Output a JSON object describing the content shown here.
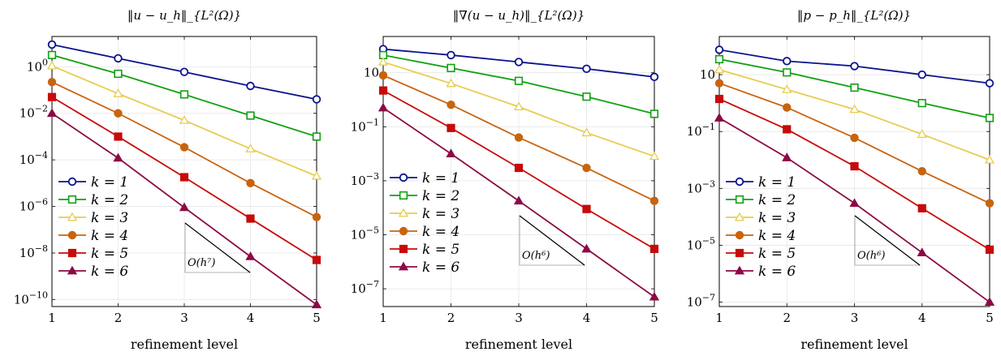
{
  "chart_data": [
    {
      "type": "line",
      "title": "‖u − u_h‖_{L²(Ω)}",
      "xlabel": "refinement level",
      "ylabel": "",
      "log_y": true,
      "x": [
        1,
        2,
        3,
        4,
        5
      ],
      "xlim": [
        1,
        5
      ],
      "ylim": [
        5e-11,
        20
      ],
      "y_ticks": [
        {
          "v": 1,
          "e": "0"
        },
        {
          "v": 0.01,
          "e": "-2"
        },
        {
          "v": 0.0001,
          "e": "-4"
        },
        {
          "v": 1e-06,
          "e": "-6"
        },
        {
          "v": 1e-08,
          "e": "-8"
        },
        {
          "v": 1e-10,
          "e": "-10"
        }
      ],
      "grid": true,
      "legend_position": "bottom-left",
      "slope_label": "O(h⁷)",
      "series": [
        {
          "name": "k = 1",
          "values": [
            9,
            2.3,
            0.6,
            0.15,
            0.04
          ]
        },
        {
          "name": "k = 2",
          "values": [
            3.2,
            0.5,
            0.065,
            0.008,
            0.001
          ]
        },
        {
          "name": "k = 3",
          "values": [
            1.1,
            0.07,
            0.005,
            0.0003,
            2e-05
          ]
        },
        {
          "name": "k = 4",
          "values": [
            0.22,
            0.01,
            0.00035,
            1e-05,
            3.5e-07
          ]
        },
        {
          "name": "k = 5",
          "values": [
            0.05,
            0.001,
            1.8e-05,
            3e-07,
            5e-09
          ]
        },
        {
          "name": "k = 6",
          "values": [
            0.01,
            0.00012,
            9e-07,
            7e-09,
            6e-11
          ]
        }
      ]
    },
    {
      "type": "line",
      "title": "‖∇(u − u_h)‖_{L²(Ω)}",
      "xlabel": "refinement level",
      "ylabel": "",
      "log_y": true,
      "x": [
        1,
        2,
        3,
        4,
        5
      ],
      "xlim": [
        1,
        5
      ],
      "ylim": [
        2.2e-08,
        220
      ],
      "y_ticks": [
        {
          "v": 10,
          "e": ""
        },
        {
          "v": 0.1,
          "e": "-1"
        },
        {
          "v": 0.001,
          "e": "-3"
        },
        {
          "v": 1e-05,
          "e": "-5"
        },
        {
          "v": 1e-07,
          "e": "-7"
        }
      ],
      "grid": true,
      "legend_position": "bottom-left",
      "slope_label": "O(h⁶)",
      "series": [
        {
          "name": "k = 1",
          "values": [
            75,
            45,
            25,
            14,
            7
          ]
        },
        {
          "name": "k = 2",
          "values": [
            45,
            15,
            5,
            1.3,
            0.3
          ]
        },
        {
          "name": "k = 3",
          "values": [
            25,
            4,
            0.55,
            0.06,
            0.008
          ]
        },
        {
          "name": "k = 4",
          "values": [
            8,
            0.65,
            0.04,
            0.003,
            0.00018
          ]
        },
        {
          "name": "k = 5",
          "values": [
            2.2,
            0.09,
            0.003,
            9e-05,
            3e-06
          ]
        },
        {
          "name": "k = 6",
          "values": [
            0.5,
            0.01,
            0.00018,
            3e-06,
            5e-08
          ]
        }
      ]
    },
    {
      "type": "line",
      "title": "‖p − p_h‖_{L²(Ω)}",
      "xlabel": "refinement level",
      "ylabel": "",
      "log_y": true,
      "x": [
        1,
        2,
        3,
        4,
        5
      ],
      "xlim": [
        1,
        5
      ],
      "ylim": [
        7e-08,
        220
      ],
      "y_ticks": [
        {
          "v": 10,
          "e": ""
        },
        {
          "v": 0.1,
          "e": "-1"
        },
        {
          "v": 0.001,
          "e": "-3"
        },
        {
          "v": 1e-05,
          "e": "-5"
        },
        {
          "v": 1e-07,
          "e": "-7"
        }
      ],
      "grid": true,
      "legend_position": "bottom-left",
      "slope_label": "O(h⁶)",
      "series": [
        {
          "name": "k = 1",
          "values": [
            75,
            30,
            20,
            10,
            5
          ]
        },
        {
          "name": "k = 2",
          "values": [
            35,
            12,
            3.5,
            1,
            0.3
          ]
        },
        {
          "name": "k = 3",
          "values": [
            15,
            3,
            0.6,
            0.08,
            0.01
          ]
        },
        {
          "name": "k = 4",
          "values": [
            5,
            0.7,
            0.06,
            0.004,
            0.0003
          ]
        },
        {
          "name": "k = 5",
          "values": [
            1.4,
            0.12,
            0.006,
            0.0002,
            7e-06
          ]
        },
        {
          "name": "k = 6",
          "values": [
            0.3,
            0.012,
            0.0003,
            5.5e-06,
            1e-07
          ]
        }
      ]
    }
  ],
  "series_colors": [
    "#0a148c",
    "#12a012",
    "#e6cd50",
    "#c8640f",
    "#c80a0a",
    "#8c0a46"
  ],
  "series_markers": [
    "circle-open",
    "square-open",
    "triangle-open",
    "circle-filled",
    "square-filled",
    "triangle-filled"
  ]
}
